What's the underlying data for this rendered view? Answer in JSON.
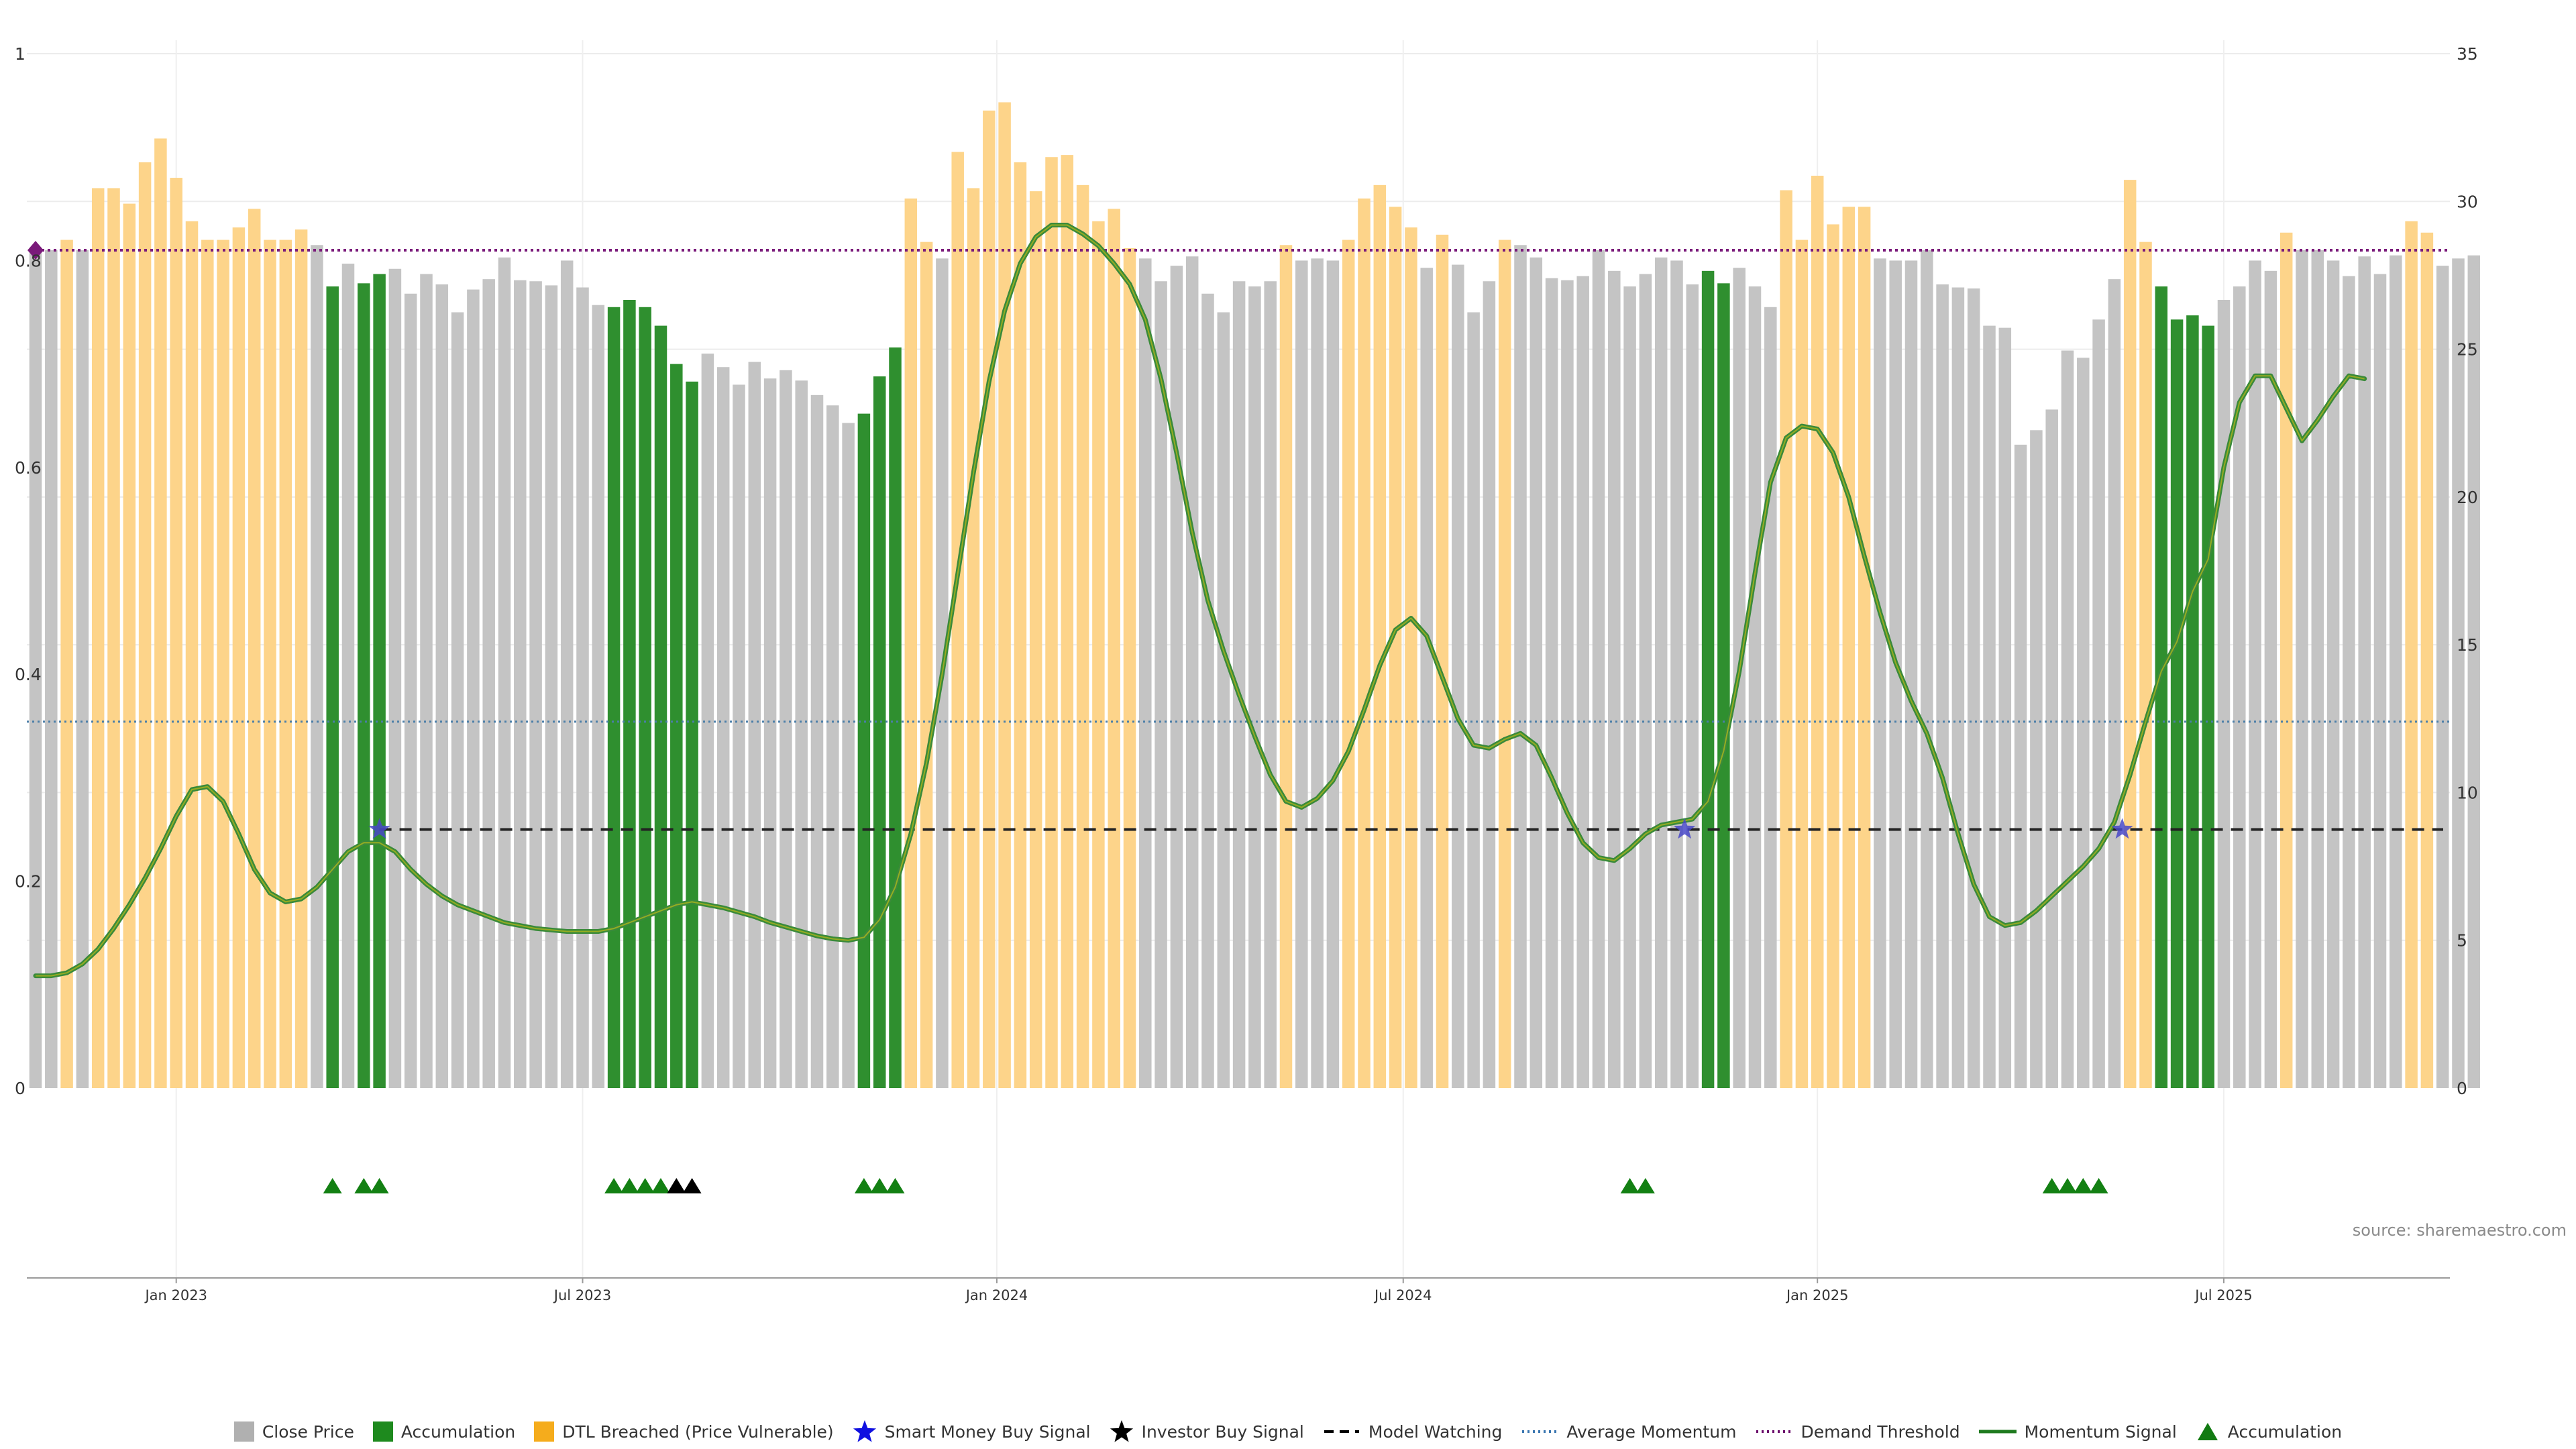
{
  "chart_data": {
    "type": "bar",
    "title": "",
    "source": "source: sharemaestro.com",
    "left_axis": {
      "ticks": [
        "0",
        "0.2",
        "0.4",
        "0.6",
        "0.8",
        "1"
      ],
      "ylim": [
        0,
        1
      ]
    },
    "right_axis": {
      "ticks": [
        "0",
        "5",
        "10",
        "15",
        "20",
        "25",
        "30",
        "35"
      ],
      "ylim": [
        0,
        35
      ]
    },
    "x_axis": {
      "ticks": [
        {
          "label": "Jan 2023",
          "index": 9.0
        },
        {
          "label": "Jul 2023",
          "index": 35.0
        },
        {
          "label": "Jan 2024",
          "index": 61.5
        },
        {
          "label": "Jul 2024",
          "index": 87.5
        },
        {
          "label": "Jan 2025",
          "index": 114.0
        },
        {
          "label": "Jul 2025",
          "index": 140.0
        }
      ]
    },
    "bars": [
      {
        "v": 0.81,
        "t": "g"
      },
      {
        "v": 0.81,
        "t": "g"
      },
      {
        "v": 0.82,
        "t": "o"
      },
      {
        "v": 0.81,
        "t": "g"
      },
      {
        "v": 0.87,
        "t": "o"
      },
      {
        "v": 0.87,
        "t": "o"
      },
      {
        "v": 0.855,
        "t": "o"
      },
      {
        "v": 0.895,
        "t": "o"
      },
      {
        "v": 0.918,
        "t": "o"
      },
      {
        "v": 0.88,
        "t": "o"
      },
      {
        "v": 0.838,
        "t": "o"
      },
      {
        "v": 0.82,
        "t": "o"
      },
      {
        "v": 0.82,
        "t": "o"
      },
      {
        "v": 0.832,
        "t": "o"
      },
      {
        "v": 0.85,
        "t": "o"
      },
      {
        "v": 0.82,
        "t": "o"
      },
      {
        "v": 0.82,
        "t": "o"
      },
      {
        "v": 0.83,
        "t": "o"
      },
      {
        "v": 0.815,
        "t": "g"
      },
      {
        "v": 0.775,
        "t": "a"
      },
      {
        "v": 0.797,
        "t": "g"
      },
      {
        "v": 0.778,
        "t": "a"
      },
      {
        "v": 0.787,
        "t": "a"
      },
      {
        "v": 0.792,
        "t": "g"
      },
      {
        "v": 0.768,
        "t": "g"
      },
      {
        "v": 0.787,
        "t": "g"
      },
      {
        "v": 0.777,
        "t": "g"
      },
      {
        "v": 0.75,
        "t": "g"
      },
      {
        "v": 0.772,
        "t": "g"
      },
      {
        "v": 0.782,
        "t": "g"
      },
      {
        "v": 0.803,
        "t": "g"
      },
      {
        "v": 0.781,
        "t": "g"
      },
      {
        "v": 0.78,
        "t": "g"
      },
      {
        "v": 0.776,
        "t": "g"
      },
      {
        "v": 0.8,
        "t": "g"
      },
      {
        "v": 0.774,
        "t": "g"
      },
      {
        "v": 0.757,
        "t": "g"
      },
      {
        "v": 0.755,
        "t": "a"
      },
      {
        "v": 0.762,
        "t": "a"
      },
      {
        "v": 0.755,
        "t": "a"
      },
      {
        "v": 0.737,
        "t": "a"
      },
      {
        "v": 0.7,
        "t": "a"
      },
      {
        "v": 0.683,
        "t": "a"
      },
      {
        "v": 0.71,
        "t": "g"
      },
      {
        "v": 0.697,
        "t": "g"
      },
      {
        "v": 0.68,
        "t": "g"
      },
      {
        "v": 0.702,
        "t": "g"
      },
      {
        "v": 0.686,
        "t": "g"
      },
      {
        "v": 0.694,
        "t": "g"
      },
      {
        "v": 0.684,
        "t": "g"
      },
      {
        "v": 0.67,
        "t": "g"
      },
      {
        "v": 0.66,
        "t": "g"
      },
      {
        "v": 0.643,
        "t": "g"
      },
      {
        "v": 0.652,
        "t": "a"
      },
      {
        "v": 0.688,
        "t": "a"
      },
      {
        "v": 0.716,
        "t": "a"
      },
      {
        "v": 0.86,
        "t": "o"
      },
      {
        "v": 0.818,
        "t": "o"
      },
      {
        "v": 0.802,
        "t": "g"
      },
      {
        "v": 0.905,
        "t": "o"
      },
      {
        "v": 0.87,
        "t": "o"
      },
      {
        "v": 0.945,
        "t": "o"
      },
      {
        "v": 0.953,
        "t": "o"
      },
      {
        "v": 0.895,
        "t": "o"
      },
      {
        "v": 0.867,
        "t": "o"
      },
      {
        "v": 0.9,
        "t": "o"
      },
      {
        "v": 0.902,
        "t": "o"
      },
      {
        "v": 0.873,
        "t": "o"
      },
      {
        "v": 0.838,
        "t": "o"
      },
      {
        "v": 0.85,
        "t": "o"
      },
      {
        "v": 0.812,
        "t": "o"
      },
      {
        "v": 0.802,
        "t": "g"
      },
      {
        "v": 0.78,
        "t": "g"
      },
      {
        "v": 0.795,
        "t": "g"
      },
      {
        "v": 0.804,
        "t": "g"
      },
      {
        "v": 0.768,
        "t": "g"
      },
      {
        "v": 0.75,
        "t": "g"
      },
      {
        "v": 0.78,
        "t": "g"
      },
      {
        "v": 0.775,
        "t": "g"
      },
      {
        "v": 0.78,
        "t": "g"
      },
      {
        "v": 0.815,
        "t": "o"
      },
      {
        "v": 0.8,
        "t": "g"
      },
      {
        "v": 0.802,
        "t": "g"
      },
      {
        "v": 0.8,
        "t": "g"
      },
      {
        "v": 0.82,
        "t": "o"
      },
      {
        "v": 0.86,
        "t": "o"
      },
      {
        "v": 0.873,
        "t": "o"
      },
      {
        "v": 0.852,
        "t": "o"
      },
      {
        "v": 0.832,
        "t": "o"
      },
      {
        "v": 0.793,
        "t": "g"
      },
      {
        "v": 0.825,
        "t": "o"
      },
      {
        "v": 0.796,
        "t": "g"
      },
      {
        "v": 0.75,
        "t": "g"
      },
      {
        "v": 0.78,
        "t": "g"
      },
      {
        "v": 0.82,
        "t": "o"
      },
      {
        "v": 0.815,
        "t": "g"
      },
      {
        "v": 0.803,
        "t": "g"
      },
      {
        "v": 0.783,
        "t": "g"
      },
      {
        "v": 0.781,
        "t": "g"
      },
      {
        "v": 0.785,
        "t": "g"
      },
      {
        "v": 0.81,
        "t": "g"
      },
      {
        "v": 0.79,
        "t": "g"
      },
      {
        "v": 0.775,
        "t": "g"
      },
      {
        "v": 0.787,
        "t": "g"
      },
      {
        "v": 0.803,
        "t": "g"
      },
      {
        "v": 0.8,
        "t": "g"
      },
      {
        "v": 0.777,
        "t": "g"
      },
      {
        "v": 0.79,
        "t": "a"
      },
      {
        "v": 0.778,
        "t": "a"
      },
      {
        "v": 0.793,
        "t": "g"
      },
      {
        "v": 0.775,
        "t": "g"
      },
      {
        "v": 0.755,
        "t": "g"
      },
      {
        "v": 0.868,
        "t": "o"
      },
      {
        "v": 0.82,
        "t": "o"
      },
      {
        "v": 0.882,
        "t": "o"
      },
      {
        "v": 0.835,
        "t": "o"
      },
      {
        "v": 0.852,
        "t": "o"
      },
      {
        "v": 0.852,
        "t": "o"
      },
      {
        "v": 0.802,
        "t": "g"
      },
      {
        "v": 0.8,
        "t": "g"
      },
      {
        "v": 0.8,
        "t": "g"
      },
      {
        "v": 0.81,
        "t": "g"
      },
      {
        "v": 0.777,
        "t": "g"
      },
      {
        "v": 0.774,
        "t": "g"
      },
      {
        "v": 0.773,
        "t": "g"
      },
      {
        "v": 0.737,
        "t": "g"
      },
      {
        "v": 0.735,
        "t": "g"
      },
      {
        "v": 0.622,
        "t": "g"
      },
      {
        "v": 0.636,
        "t": "g"
      },
      {
        "v": 0.656,
        "t": "g"
      },
      {
        "v": 0.713,
        "t": "g"
      },
      {
        "v": 0.706,
        "t": "g"
      },
      {
        "v": 0.743,
        "t": "g"
      },
      {
        "v": 0.782,
        "t": "g"
      },
      {
        "v": 0.878,
        "t": "o"
      },
      {
        "v": 0.818,
        "t": "o"
      },
      {
        "v": 0.775,
        "t": "a"
      },
      {
        "v": 0.743,
        "t": "a"
      },
      {
        "v": 0.747,
        "t": "a"
      },
      {
        "v": 0.737,
        "t": "a"
      },
      {
        "v": 0.762,
        "t": "g"
      },
      {
        "v": 0.775,
        "t": "g"
      },
      {
        "v": 0.8,
        "t": "g"
      },
      {
        "v": 0.79,
        "t": "g"
      },
      {
        "v": 0.827,
        "t": "o"
      },
      {
        "v": 0.81,
        "t": "g"
      },
      {
        "v": 0.81,
        "t": "g"
      },
      {
        "v": 0.8,
        "t": "g"
      },
      {
        "v": 0.785,
        "t": "g"
      },
      {
        "v": 0.804,
        "t": "g"
      },
      {
        "v": 0.787,
        "t": "g"
      },
      {
        "v": 0.805,
        "t": "g"
      },
      {
        "v": 0.838,
        "t": "o"
      },
      {
        "v": 0.827,
        "t": "o"
      },
      {
        "v": 0.795,
        "t": "g"
      },
      {
        "v": 0.802,
        "t": "g"
      },
      {
        "v": 0.805,
        "t": "g"
      }
    ],
    "bar_types": {
      "g": "Close Price",
      "a": "Accumulation",
      "o": "DTL Breached (Price Vulnerable)"
    },
    "momentum": [
      [
        0,
        3.8
      ],
      [
        1,
        3.8
      ],
      [
        2,
        3.9
      ],
      [
        3,
        4.2
      ],
      [
        4,
        4.7
      ],
      [
        5,
        5.4
      ],
      [
        6,
        6.2
      ],
      [
        7,
        7.1
      ],
      [
        8,
        8.1
      ],
      [
        9,
        9.2
      ],
      [
        10,
        10.1
      ],
      [
        11,
        10.2
      ],
      [
        12,
        9.7
      ],
      [
        13,
        8.6
      ],
      [
        14,
        7.4
      ],
      [
        15,
        6.6
      ],
      [
        16,
        6.3
      ],
      [
        17,
        6.4
      ],
      [
        18,
        6.8
      ],
      [
        19,
        7.4
      ],
      [
        20,
        8.0
      ],
      [
        21,
        8.3
      ],
      [
        22,
        8.3
      ],
      [
        23,
        8.0
      ],
      [
        24,
        7.4
      ],
      [
        25,
        6.9
      ],
      [
        26,
        6.5
      ],
      [
        27,
        6.2
      ],
      [
        28,
        6.0
      ],
      [
        29,
        5.8
      ],
      [
        30,
        5.6
      ],
      [
        31,
        5.5
      ],
      [
        32,
        5.4
      ],
      [
        33,
        5.35
      ],
      [
        34,
        5.3
      ],
      [
        35,
        5.3
      ],
      [
        36,
        5.3
      ],
      [
        37,
        5.4
      ],
      [
        38,
        5.6
      ],
      [
        39,
        5.8
      ],
      [
        40,
        6.0
      ],
      [
        41,
        6.2
      ],
      [
        42,
        6.3
      ],
      [
        43,
        6.2
      ],
      [
        44,
        6.1
      ],
      [
        45,
        5.95
      ],
      [
        46,
        5.8
      ],
      [
        47,
        5.6
      ],
      [
        48,
        5.45
      ],
      [
        49,
        5.3
      ],
      [
        50,
        5.15
      ],
      [
        51,
        5.05
      ],
      [
        52,
        5.0
      ],
      [
        53,
        5.1
      ],
      [
        54,
        5.7
      ],
      [
        55,
        6.8
      ],
      [
        56,
        8.6
      ],
      [
        57,
        11.0
      ],
      [
        58,
        14.0
      ],
      [
        59,
        17.4
      ],
      [
        60,
        20.8
      ],
      [
        61,
        23.9
      ],
      [
        62,
        26.3
      ],
      [
        63,
        27.9
      ],
      [
        64,
        28.8
      ],
      [
        65,
        29.2
      ],
      [
        66,
        29.2
      ],
      [
        67,
        28.9
      ],
      [
        68,
        28.5
      ],
      [
        69,
        27.9
      ],
      [
        70,
        27.2
      ],
      [
        71,
        26.0
      ],
      [
        72,
        24.0
      ],
      [
        73,
        21.5
      ],
      [
        74,
        18.8
      ],
      [
        75,
        16.5
      ],
      [
        76,
        14.8
      ],
      [
        77,
        13.3
      ],
      [
        78,
        11.9
      ],
      [
        79,
        10.6
      ],
      [
        80,
        9.7
      ],
      [
        81,
        9.5
      ],
      [
        82,
        9.8
      ],
      [
        83,
        10.4
      ],
      [
        84,
        11.4
      ],
      [
        85,
        12.8
      ],
      [
        86,
        14.3
      ],
      [
        87,
        15.5
      ],
      [
        88,
        15.9
      ],
      [
        89,
        15.3
      ],
      [
        90,
        13.9
      ],
      [
        91,
        12.5
      ],
      [
        92,
        11.6
      ],
      [
        93,
        11.5
      ],
      [
        94,
        11.8
      ],
      [
        95,
        12.0
      ],
      [
        96,
        11.6
      ],
      [
        97,
        10.5
      ],
      [
        98,
        9.3
      ],
      [
        99,
        8.3
      ],
      [
        100,
        7.8
      ],
      [
        101,
        7.7
      ],
      [
        102,
        8.1
      ],
      [
        103,
        8.6
      ],
      [
        104,
        8.9
      ],
      [
        105,
        9.0
      ],
      [
        106,
        9.1
      ],
      [
        107,
        9.7
      ],
      [
        108,
        11.4
      ],
      [
        109,
        14.1
      ],
      [
        110,
        17.4
      ],
      [
        111,
        20.5
      ],
      [
        112,
        22.0
      ],
      [
        113,
        22.4
      ],
      [
        114,
        22.3
      ],
      [
        115,
        21.5
      ],
      [
        116,
        20.0
      ],
      [
        117,
        18.0
      ],
      [
        118,
        16.1
      ],
      [
        119,
        14.4
      ],
      [
        120,
        13.1
      ],
      [
        121,
        12.0
      ],
      [
        122,
        10.5
      ],
      [
        123,
        8.6
      ],
      [
        124,
        6.9
      ],
      [
        125,
        5.8
      ],
      [
        126,
        5.5
      ],
      [
        127,
        5.6
      ],
      [
        128,
        6.0
      ],
      [
        129,
        6.5
      ],
      [
        130,
        7.0
      ],
      [
        131,
        7.5
      ],
      [
        132,
        8.1
      ],
      [
        133,
        9.0
      ],
      [
        134,
        10.6
      ],
      [
        135,
        12.4
      ],
      [
        136,
        14.1
      ],
      [
        137,
        15.1
      ],
      [
        138,
        16.8
      ],
      [
        139,
        17.9
      ],
      [
        140,
        21.0
      ],
      [
        141,
        23.2
      ],
      [
        142,
        24.1
      ],
      [
        143,
        24.1
      ],
      [
        144,
        23.0
      ],
      [
        145,
        21.9
      ],
      [
        146,
        22.6
      ],
      [
        147,
        23.4
      ],
      [
        148,
        24.1
      ],
      [
        149,
        24.0
      ]
    ],
    "model_watching": {
      "value": 0.25,
      "start_index": 22
    },
    "average_momentum": 12.4,
    "demand_threshold": 0.81,
    "demand_marker_index": 0,
    "smart_money_signals": [
      {
        "index": 22,
        "value": 0.25
      },
      {
        "index": 105.5,
        "value": 0.25
      },
      {
        "index": 133.5,
        "value": 0.25
      }
    ],
    "accumulation_markers": [
      19,
      21,
      22,
      37,
      38,
      39,
      40,
      53,
      54,
      55,
      102,
      103,
      129,
      130,
      131,
      132
    ],
    "investor_markers": [
      41,
      42
    ],
    "colors": {
      "close_price": "#c4c4c4",
      "accumulation": "#2f8f2f",
      "dtl": "#fdd48a",
      "momentum": "#3a8a3a",
      "momentum_highlight": "#a0b020",
      "demand": "#7a1a7a",
      "average": "#4a7ea8",
      "watching": "#222222",
      "star": "#4848c8",
      "marker_green": "#138013",
      "marker_black": "#000000"
    }
  },
  "legend": {
    "items": [
      {
        "label": "Close Price",
        "symbol": "square",
        "color": "#b0b0b0"
      },
      {
        "label": "Accumulation",
        "symbol": "square",
        "color": "#1e8a1e"
      },
      {
        "label": "DTL Breached (Price Vulnerable)",
        "symbol": "square",
        "color": "#f5ac1c"
      },
      {
        "label": "Smart Money Buy Signal",
        "symbol": "star",
        "color": "#1010e0"
      },
      {
        "label": "Investor Buy Signal",
        "symbol": "star",
        "color": "#000000"
      },
      {
        "label": "Model Watching",
        "symbol": "dash",
        "color": "#000000"
      },
      {
        "label": "Average Momentum",
        "symbol": "dot",
        "color": "#3a76b0"
      },
      {
        "label": "Demand Threshold",
        "symbol": "dot",
        "color": "#6a0a6a"
      },
      {
        "label": "Momentum Signal",
        "symbol": "line",
        "color": "#1e7a1e"
      },
      {
        "label": "Accumulation",
        "symbol": "triangle",
        "color": "#127a12"
      }
    ]
  }
}
